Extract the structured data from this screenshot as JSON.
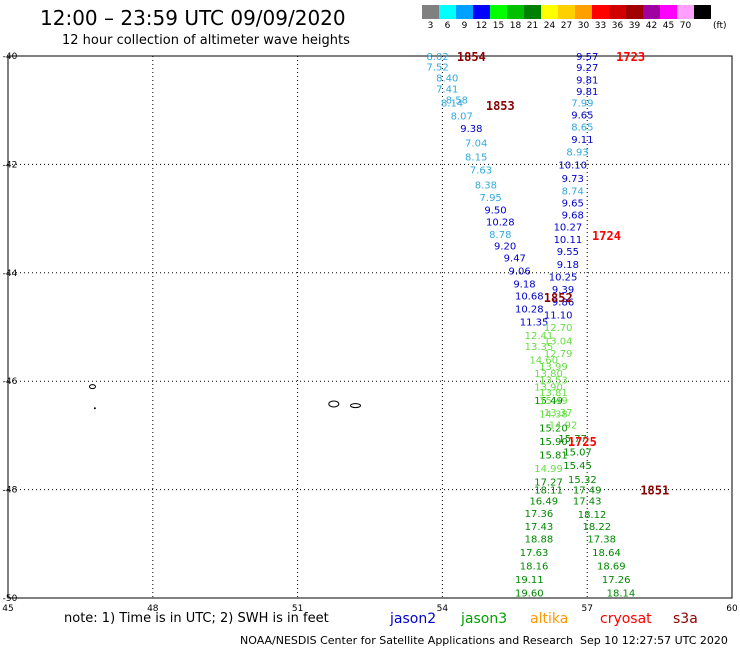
{
  "header": {
    "title": "12:00 – 23:59 UTC 09/09/2020",
    "subtitle": "12 hour collection of altimeter wave heights"
  },
  "colorbar": {
    "unit": "(ft)",
    "cells": [
      {
        "label": "3",
        "color": "#808080"
      },
      {
        "label": "6",
        "color": "#00ffff"
      },
      {
        "label": "9",
        "color": "#00a0ff"
      },
      {
        "label": "12",
        "color": "#0000ff"
      },
      {
        "label": "15",
        "color": "#00ff00"
      },
      {
        "label": "18",
        "color": "#00c000"
      },
      {
        "label": "21",
        "color": "#008000"
      },
      {
        "label": "24",
        "color": "#ffff00"
      },
      {
        "label": "27",
        "color": "#ffd000"
      },
      {
        "label": "30",
        "color": "#ffa000"
      },
      {
        "label": "33",
        "color": "#ff0000"
      },
      {
        "label": "36",
        "color": "#d00000"
      },
      {
        "label": "39",
        "color": "#a00000"
      },
      {
        "label": "42",
        "color": "#a000a0"
      },
      {
        "label": "45",
        "color": "#ff00ff"
      },
      {
        "label": "70",
        "color": "#ffa0ff"
      },
      {
        "label": "",
        "color": "#000000"
      }
    ]
  },
  "chart_data": {
    "type": "scatter",
    "title": "12:00 – 23:59 UTC 09/09/2020",
    "xlim": [
      45,
      60
    ],
    "ylim": [
      -50,
      -40
    ],
    "x_ticks": [
      "45",
      "48",
      "51",
      "54",
      "57",
      "60"
    ],
    "y_ticks": [
      "-40",
      "-42",
      "-44",
      "-46",
      "-48",
      "-50"
    ],
    "grid": true,
    "legend": [
      "jason2",
      "jason3",
      "altika",
      "cryosat",
      "s3a"
    ],
    "legend_colors": {
      "jason2": "#0000cc",
      "jason3": "#00a000",
      "altika": "#ff9900",
      "cryosat": "#ff0000",
      "s3a": "#8b0000"
    },
    "series": [
      {
        "track": "west",
        "points": [
          {
            "x": 53.9,
            "y": -40.0,
            "v": "8.02",
            "c": "#33aadd"
          },
          {
            "x": 53.9,
            "y": -40.19,
            "v": "7.52",
            "c": "#33aadd"
          },
          {
            "x": 54.1,
            "y": -40.4,
            "v": "8.40",
            "c": "#33aadd"
          },
          {
            "x": 54.1,
            "y": -40.6,
            "v": "7.41",
            "c": "#33aadd"
          },
          {
            "x": 54.3,
            "y": -40.8,
            "v": "8.58",
            "c": "#33aadd"
          },
          {
            "x": 54.2,
            "y": -40.86,
            "v": "8.14",
            "c": "#33aadd"
          },
          {
            "x": 54.4,
            "y": -41.1,
            "v": "8.07",
            "c": "#33aadd"
          },
          {
            "x": 54.6,
            "y": -41.33,
            "v": "9.38",
            "c": "#0000cc"
          },
          {
            "x": 54.7,
            "y": -41.6,
            "v": "7.04",
            "c": "#33aadd"
          },
          {
            "x": 54.7,
            "y": -41.85,
            "v": "8.15",
            "c": "#33aadd"
          },
          {
            "x": 54.8,
            "y": -42.09,
            "v": "7.63",
            "c": "#33aadd"
          },
          {
            "x": 54.9,
            "y": -42.37,
            "v": "8.38",
            "c": "#33aadd"
          },
          {
            "x": 55.0,
            "y": -42.6,
            "v": "7.95",
            "c": "#33aadd"
          },
          {
            "x": 55.1,
            "y": -42.83,
            "v": "9.50",
            "c": "#0000cc"
          },
          {
            "x": 55.2,
            "y": -43.05,
            "v": "10.28",
            "c": "#0000cc"
          },
          {
            "x": 55.2,
            "y": -43.28,
            "v": "8.78",
            "c": "#33aadd"
          },
          {
            "x": 55.3,
            "y": -43.5,
            "v": "9.20",
            "c": "#0000cc"
          },
          {
            "x": 55.5,
            "y": -43.72,
            "v": "9.47",
            "c": "#0000cc"
          },
          {
            "x": 55.6,
            "y": -43.96,
            "v": "9.06",
            "c": "#0000cc"
          },
          {
            "x": 55.7,
            "y": -44.2,
            "v": "9.18",
            "c": "#0000cc"
          },
          {
            "x": 55.8,
            "y": -44.42,
            "v": "10.68",
            "c": "#0000cc"
          },
          {
            "x": 55.8,
            "y": -44.66,
            "v": "10.28",
            "c": "#0000cc"
          },
          {
            "x": 55.9,
            "y": -44.9,
            "v": "11.35",
            "c": "#0000cc"
          },
          {
            "x": 56.0,
            "y": -45.15,
            "v": "12.41",
            "c": "#66dd44"
          },
          {
            "x": 56.0,
            "y": -45.35,
            "v": "13.35",
            "c": "#66dd44"
          },
          {
            "x": 56.1,
            "y": -45.6,
            "v": "14.60",
            "c": "#66dd44"
          },
          {
            "x": 56.2,
            "y": -45.85,
            "v": "13.80",
            "c": "#66dd44"
          },
          {
            "x": 56.2,
            "y": -46.1,
            "v": "13.90",
            "c": "#66dd44"
          },
          {
            "x": 56.2,
            "y": -46.35,
            "v": "15.49",
            "c": "#008800"
          },
          {
            "x": 56.3,
            "y": -46.6,
            "v": "14.38",
            "c": "#66dd44"
          },
          {
            "x": 56.3,
            "y": -46.85,
            "v": "15.20",
            "c": "#008800"
          },
          {
            "x": 56.3,
            "y": -47.1,
            "v": "15.90",
            "c": "#008800"
          },
          {
            "x": 56.3,
            "y": -47.35,
            "v": "15.81",
            "c": "#008800"
          },
          {
            "x": 56.2,
            "y": -47.6,
            "v": "14.99",
            "c": "#66dd44"
          },
          {
            "x": 56.2,
            "y": -47.85,
            "v": "17.27",
            "c": "#008800"
          },
          {
            "x": 56.2,
            "y": -48.0,
            "v": "18.11",
            "c": "#008800"
          },
          {
            "x": 56.1,
            "y": -48.2,
            "v": "16.49",
            "c": "#008800"
          },
          {
            "x": 56.0,
            "y": -48.43,
            "v": "17.36",
            "c": "#008800"
          },
          {
            "x": 56.0,
            "y": -48.67,
            "v": "17.43",
            "c": "#008800"
          },
          {
            "x": 56.0,
            "y": -48.9,
            "v": "18.88",
            "c": "#008800"
          },
          {
            "x": 55.9,
            "y": -49.15,
            "v": "17.63",
            "c": "#008800"
          },
          {
            "x": 55.9,
            "y": -49.4,
            "v": "18.16",
            "c": "#008800"
          },
          {
            "x": 55.8,
            "y": -49.65,
            "v": "19.11",
            "c": "#008800"
          },
          {
            "x": 55.8,
            "y": -49.9,
            "v": "19.60",
            "c": "#008800"
          }
        ]
      },
      {
        "track": "east",
        "points": [
          {
            "x": 57.0,
            "y": -40.0,
            "v": "9.57",
            "c": "#0000cc"
          },
          {
            "x": 57.0,
            "y": -40.2,
            "v": "9.27",
            "c": "#0000cc"
          },
          {
            "x": 57.0,
            "y": -40.43,
            "v": "9.81",
            "c": "#0000cc"
          },
          {
            "x": 57.0,
            "y": -40.65,
            "v": "9.81",
            "c": "#0000cc"
          },
          {
            "x": 56.9,
            "y": -40.86,
            "v": "7.99",
            "c": "#33aadd"
          },
          {
            "x": 56.9,
            "y": -41.08,
            "v": "9.65",
            "c": "#0000cc"
          },
          {
            "x": 56.9,
            "y": -41.3,
            "v": "8.65",
            "c": "#33aadd"
          },
          {
            "x": 56.9,
            "y": -41.53,
            "v": "9.11",
            "c": "#0000cc"
          },
          {
            "x": 56.8,
            "y": -41.76,
            "v": "8.93",
            "c": "#33aadd"
          },
          {
            "x": 56.7,
            "y": -42.0,
            "v": "10.10",
            "c": "#0000cc"
          },
          {
            "x": 56.7,
            "y": -42.25,
            "v": "9.73",
            "c": "#0000cc"
          },
          {
            "x": 56.7,
            "y": -42.48,
            "v": "8.74",
            "c": "#33aadd"
          },
          {
            "x": 56.7,
            "y": -42.7,
            "v": "9.65",
            "c": "#0000cc"
          },
          {
            "x": 56.7,
            "y": -42.92,
            "v": "9.68",
            "c": "#0000cc"
          },
          {
            "x": 56.6,
            "y": -43.15,
            "v": "10.27",
            "c": "#0000cc"
          },
          {
            "x": 56.6,
            "y": -43.38,
            "v": "10.11",
            "c": "#0000cc"
          },
          {
            "x": 56.6,
            "y": -43.6,
            "v": "9.55",
            "c": "#0000cc"
          },
          {
            "x": 56.6,
            "y": -43.84,
            "v": "9.18",
            "c": "#0000cc"
          },
          {
            "x": 56.5,
            "y": -44.07,
            "v": "10.25",
            "c": "#0000cc"
          },
          {
            "x": 56.5,
            "y": -44.3,
            "v": "9.39",
            "c": "#0000cc"
          },
          {
            "x": 56.5,
            "y": -44.53,
            "v": "9.86",
            "c": "#0000cc"
          },
          {
            "x": 56.4,
            "y": -44.77,
            "v": "11.10",
            "c": "#0000cc"
          },
          {
            "x": 56.4,
            "y": -45.0,
            "v": "12.70",
            "c": "#66dd44"
          },
          {
            "x": 56.4,
            "y": -45.25,
            "v": "13.04",
            "c": "#66dd44"
          },
          {
            "x": 56.4,
            "y": -45.48,
            "v": "12.79",
            "c": "#66dd44"
          },
          {
            "x": 56.3,
            "y": -45.72,
            "v": "13.99",
            "c": "#66dd44"
          },
          {
            "x": 56.3,
            "y": -45.97,
            "v": "13.53",
            "c": "#66dd44"
          },
          {
            "x": 56.3,
            "y": -46.2,
            "v": "13.81",
            "c": "#66dd44"
          },
          {
            "x": 56.3,
            "y": -46.35,
            "v": "15.49",
            "c": "#66dd44"
          },
          {
            "x": 56.4,
            "y": -46.57,
            "v": "13.37",
            "c": "#66dd44"
          },
          {
            "x": 56.5,
            "y": -46.8,
            "v": "14.92",
            "c": "#66dd44"
          },
          {
            "x": 56.7,
            "y": -47.05,
            "v": "15.77",
            "c": "#008800"
          },
          {
            "x": 56.8,
            "y": -47.3,
            "v": "15.07",
            "c": "#008800"
          },
          {
            "x": 56.8,
            "y": -47.55,
            "v": "15.45",
            "c": "#008800"
          },
          {
            "x": 56.9,
            "y": -47.8,
            "v": "15.32",
            "c": "#008800"
          },
          {
            "x": 57.0,
            "y": -48.0,
            "v": "17.49",
            "c": "#008800"
          },
          {
            "x": 57.0,
            "y": -48.2,
            "v": "17.43",
            "c": "#008800"
          },
          {
            "x": 57.1,
            "y": -48.45,
            "v": "18.12",
            "c": "#008800"
          },
          {
            "x": 57.2,
            "y": -48.67,
            "v": "18.22",
            "c": "#008800"
          },
          {
            "x": 57.3,
            "y": -48.9,
            "v": "17.38",
            "c": "#008800"
          },
          {
            "x": 57.4,
            "y": -49.15,
            "v": "18.64",
            "c": "#008800"
          },
          {
            "x": 57.5,
            "y": -49.4,
            "v": "18.69",
            "c": "#008800"
          },
          {
            "x": 57.6,
            "y": -49.65,
            "v": "17.26",
            "c": "#008800"
          },
          {
            "x": 57.7,
            "y": -49.9,
            "v": "18.14",
            "c": "#008800"
          }
        ]
      }
    ],
    "time_labels": [
      {
        "x": 54.6,
        "y": -40.0,
        "label": "1854",
        "c": "#8b0000"
      },
      {
        "x": 55.2,
        "y": -40.9,
        "label": "1853",
        "c": "#8b0000"
      },
      {
        "x": 56.4,
        "y": -44.45,
        "label": "1852",
        "c": "#8b0000"
      },
      {
        "x": 58.4,
        "y": -48.0,
        "label": "1851",
        "c": "#8b0000"
      },
      {
        "x": 57.9,
        "y": -40.0,
        "label": "1723",
        "c": "#ff0000"
      },
      {
        "x": 57.4,
        "y": -43.3,
        "label": "1724",
        "c": "#ff0000"
      },
      {
        "x": 56.9,
        "y": -47.1,
        "label": "1725",
        "c": "#ff0000"
      }
    ]
  },
  "footer": {
    "note": "note: 1) Time is in UTC; 2) SWH is in feet",
    "legend_items": [
      {
        "label": "jason2",
        "color": "#0000cc"
      },
      {
        "label": "jason3",
        "color": "#00a000"
      },
      {
        "label": "altika",
        "color": "#ff9900"
      },
      {
        "label": "cryosat",
        "color": "#ff0000"
      },
      {
        "label": "s3a",
        "color": "#8b0000"
      }
    ],
    "credit": "NOAA/NESDIS Center for Satellite Applications and Research",
    "timestamp": "Sep 10 12:27:57 UTC 2020"
  }
}
